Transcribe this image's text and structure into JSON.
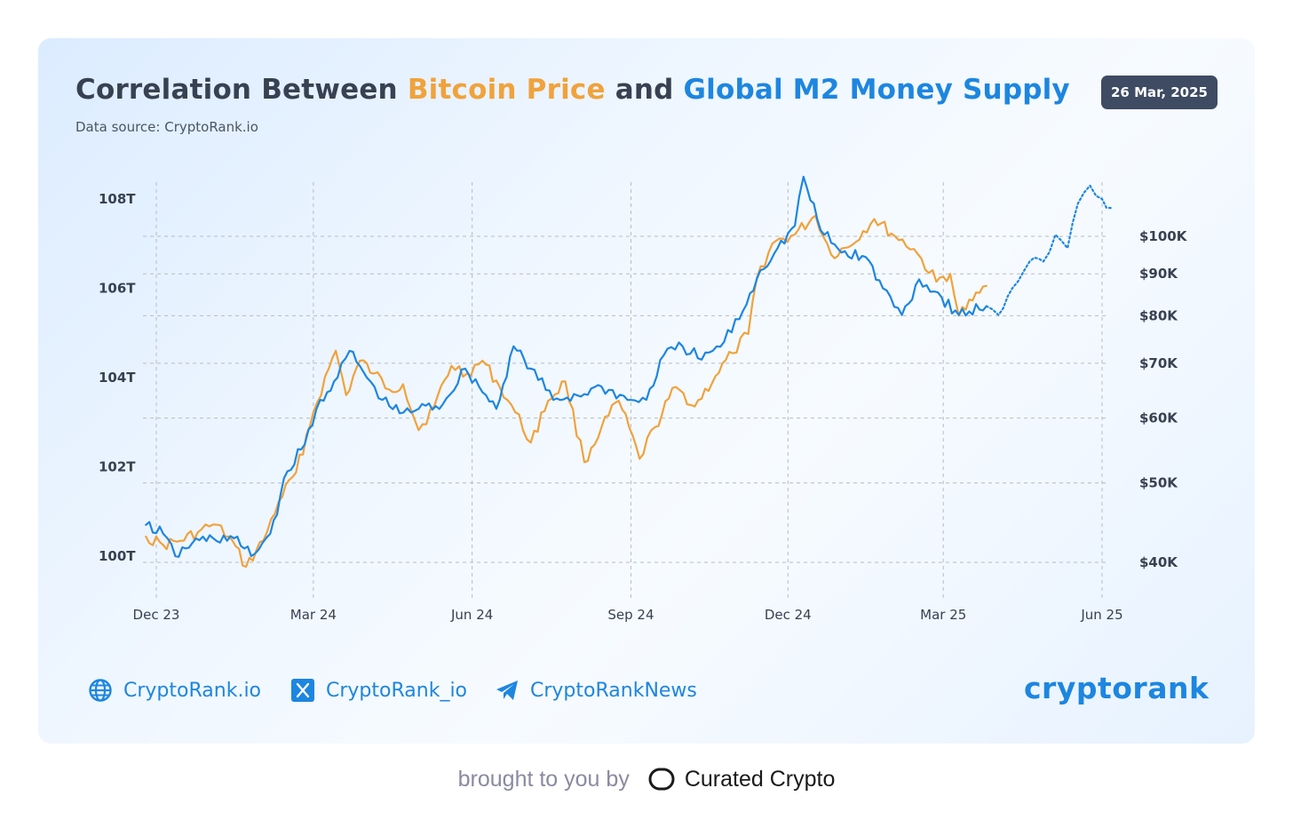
{
  "header": {
    "title_prefix": "Correlation Between",
    "title_btc": "Bitcoin Price",
    "title_mid": "and",
    "title_m2": "Global M2 Money Supply",
    "subtitle": "Data source: CryptoRank.io",
    "date": "26 Mar, 2025"
  },
  "colors": {
    "bitcoin": "#f0a23c",
    "m2": "#1d86e0",
    "title_text": "#374151",
    "badge_bg": "#3f4b63",
    "grid": "#b8bcc4"
  },
  "chart_data": {
    "type": "line",
    "title": "Correlation Between Bitcoin Price and Global M2 Money Supply",
    "x_ticks": [
      "Dec 23",
      "Mar 24",
      "Jun 24",
      "Sep 24",
      "Dec 24",
      "Mar 25",
      "Jun 25"
    ],
    "left_axis": {
      "ticks": [
        "100T",
        "102T",
        "104T",
        "106T",
        "108T"
      ],
      "tick_values": [
        100,
        102,
        104,
        106,
        108
      ],
      "range": [
        99.8,
        108.6
      ],
      "unit": "T"
    },
    "right_axis": {
      "scale": "log",
      "ticks": [
        "$40K",
        "$50K",
        "$60K",
        "$70K",
        "$80K",
        "$90K",
        "$100K"
      ],
      "tick_values": [
        40000,
        50000,
        60000,
        70000,
        80000,
        90000,
        100000
      ],
      "range": [
        37000,
        120000
      ]
    },
    "grid": true,
    "series": [
      {
        "name": "Bitcoin Price",
        "axis": "right",
        "points": [
          [
            "2023-11-25",
            43000
          ],
          [
            "2023-12-05",
            42000
          ],
          [
            "2023-12-15",
            42500
          ],
          [
            "2023-12-25",
            43500
          ],
          [
            "2024-01-03",
            44500
          ],
          [
            "2024-01-12",
            43000
          ],
          [
            "2024-01-22",
            39500
          ],
          [
            "2024-02-01",
            42500
          ],
          [
            "2024-02-10",
            47500
          ],
          [
            "2024-02-20",
            51500
          ],
          [
            "2024-03-01",
            61000
          ],
          [
            "2024-03-10",
            69000
          ],
          [
            "2024-03-14",
            72500
          ],
          [
            "2024-03-20",
            64000
          ],
          [
            "2024-03-28",
            70500
          ],
          [
            "2024-04-05",
            68000
          ],
          [
            "2024-04-14",
            65000
          ],
          [
            "2024-04-22",
            66000
          ],
          [
            "2024-05-01",
            58000
          ],
          [
            "2024-05-10",
            62000
          ],
          [
            "2024-05-20",
            69500
          ],
          [
            "2024-05-29",
            68000
          ],
          [
            "2024-06-07",
            70500
          ],
          [
            "2024-06-17",
            65500
          ],
          [
            "2024-06-26",
            61000
          ],
          [
            "2024-07-05",
            56000
          ],
          [
            "2024-07-15",
            63000
          ],
          [
            "2024-07-25",
            66500
          ],
          [
            "2024-08-05",
            53000
          ],
          [
            "2024-08-15",
            58500
          ],
          [
            "2024-08-25",
            63000
          ],
          [
            "2024-09-06",
            53500
          ],
          [
            "2024-09-15",
            58500
          ],
          [
            "2024-09-27",
            65500
          ],
          [
            "2024-10-08",
            62000
          ],
          [
            "2024-10-20",
            67500
          ],
          [
            "2024-10-30",
            72000
          ],
          [
            "2024-11-08",
            76000
          ],
          [
            "2024-11-13",
            89000
          ],
          [
            "2024-11-22",
            98000
          ],
          [
            "2024-12-05",
            100500
          ],
          [
            "2024-12-17",
            106000
          ],
          [
            "2024-12-26",
            95000
          ],
          [
            "2025-01-05",
            97000
          ],
          [
            "2025-01-20",
            105000
          ],
          [
            "2025-02-01",
            100000
          ],
          [
            "2025-02-12",
            96500
          ],
          [
            "2025-02-25",
            88000
          ],
          [
            "2025-03-05",
            90000
          ],
          [
            "2025-03-10",
            80000
          ],
          [
            "2025-03-18",
            83500
          ],
          [
            "2025-03-26",
            87000
          ]
        ]
      },
      {
        "name": "Global M2 Money Supply",
        "axis": "left",
        "points": [
          [
            "2023-11-25",
            100.7
          ],
          [
            "2023-12-05",
            100.5
          ],
          [
            "2023-12-12",
            100.0
          ],
          [
            "2023-12-22",
            100.3
          ],
          [
            "2024-01-03",
            100.4
          ],
          [
            "2024-01-15",
            100.4
          ],
          [
            "2024-01-25",
            100.0
          ],
          [
            "2024-02-05",
            100.5
          ],
          [
            "2024-02-15",
            101.9
          ],
          [
            "2024-02-25",
            102.5
          ],
          [
            "2024-03-05",
            103.5
          ],
          [
            "2024-03-15",
            104.0
          ],
          [
            "2024-03-22",
            104.6
          ],
          [
            "2024-04-01",
            104.0
          ],
          [
            "2024-04-10",
            103.5
          ],
          [
            "2024-04-20",
            103.2
          ],
          [
            "2024-05-01",
            103.3
          ],
          [
            "2024-05-15",
            103.4
          ],
          [
            "2024-05-28",
            104.2
          ],
          [
            "2024-06-05",
            103.8
          ],
          [
            "2024-06-15",
            103.3
          ],
          [
            "2024-06-25",
            104.7
          ],
          [
            "2024-07-05",
            104.2
          ],
          [
            "2024-07-18",
            103.5
          ],
          [
            "2024-08-01",
            103.6
          ],
          [
            "2024-08-15",
            103.8
          ],
          [
            "2024-08-30",
            103.5
          ],
          [
            "2024-09-10",
            103.5
          ],
          [
            "2024-09-20",
            104.5
          ],
          [
            "2024-10-01",
            104.7
          ],
          [
            "2024-10-12",
            104.4
          ],
          [
            "2024-10-25",
            104.8
          ],
          [
            "2024-11-05",
            105.5
          ],
          [
            "2024-11-15",
            106.4
          ],
          [
            "2024-11-25",
            106.9
          ],
          [
            "2024-12-05",
            107.4
          ],
          [
            "2024-12-10",
            108.5
          ],
          [
            "2024-12-20",
            107.3
          ],
          [
            "2025-01-01",
            106.8
          ],
          [
            "2025-01-15",
            106.7
          ],
          [
            "2025-01-25",
            106.0
          ],
          [
            "2025-02-05",
            105.4
          ],
          [
            "2025-02-15",
            106.2
          ],
          [
            "2025-02-28",
            105.8
          ],
          [
            "2025-03-10",
            105.4
          ],
          [
            "2025-03-26",
            105.6
          ]
        ]
      },
      {
        "name": "Global M2 Money Supply (projection)",
        "axis": "left",
        "style": "dotted",
        "points": [
          [
            "2025-03-26",
            105.6
          ],
          [
            "2025-04-02",
            105.4
          ],
          [
            "2025-04-10",
            106.0
          ],
          [
            "2025-04-20",
            106.6
          ],
          [
            "2025-04-28",
            106.6
          ],
          [
            "2025-05-05",
            107.2
          ],
          [
            "2025-05-12",
            106.9
          ],
          [
            "2025-05-18",
            107.9
          ],
          [
            "2025-05-25",
            108.3
          ],
          [
            "2025-06-01",
            108.0
          ],
          [
            "2025-06-06",
            107.8
          ]
        ]
      }
    ]
  },
  "footer": {
    "links": [
      {
        "label": "CryptoRank.io",
        "icon": "globe-icon"
      },
      {
        "label": "CryptoRank_io",
        "icon": "x-icon"
      },
      {
        "label": "CryptoRankNews",
        "icon": "telegram-icon"
      }
    ],
    "logo": "cryptorank"
  },
  "credit": {
    "prefix": "brought to you by",
    "brand": "Curated Crypto"
  }
}
